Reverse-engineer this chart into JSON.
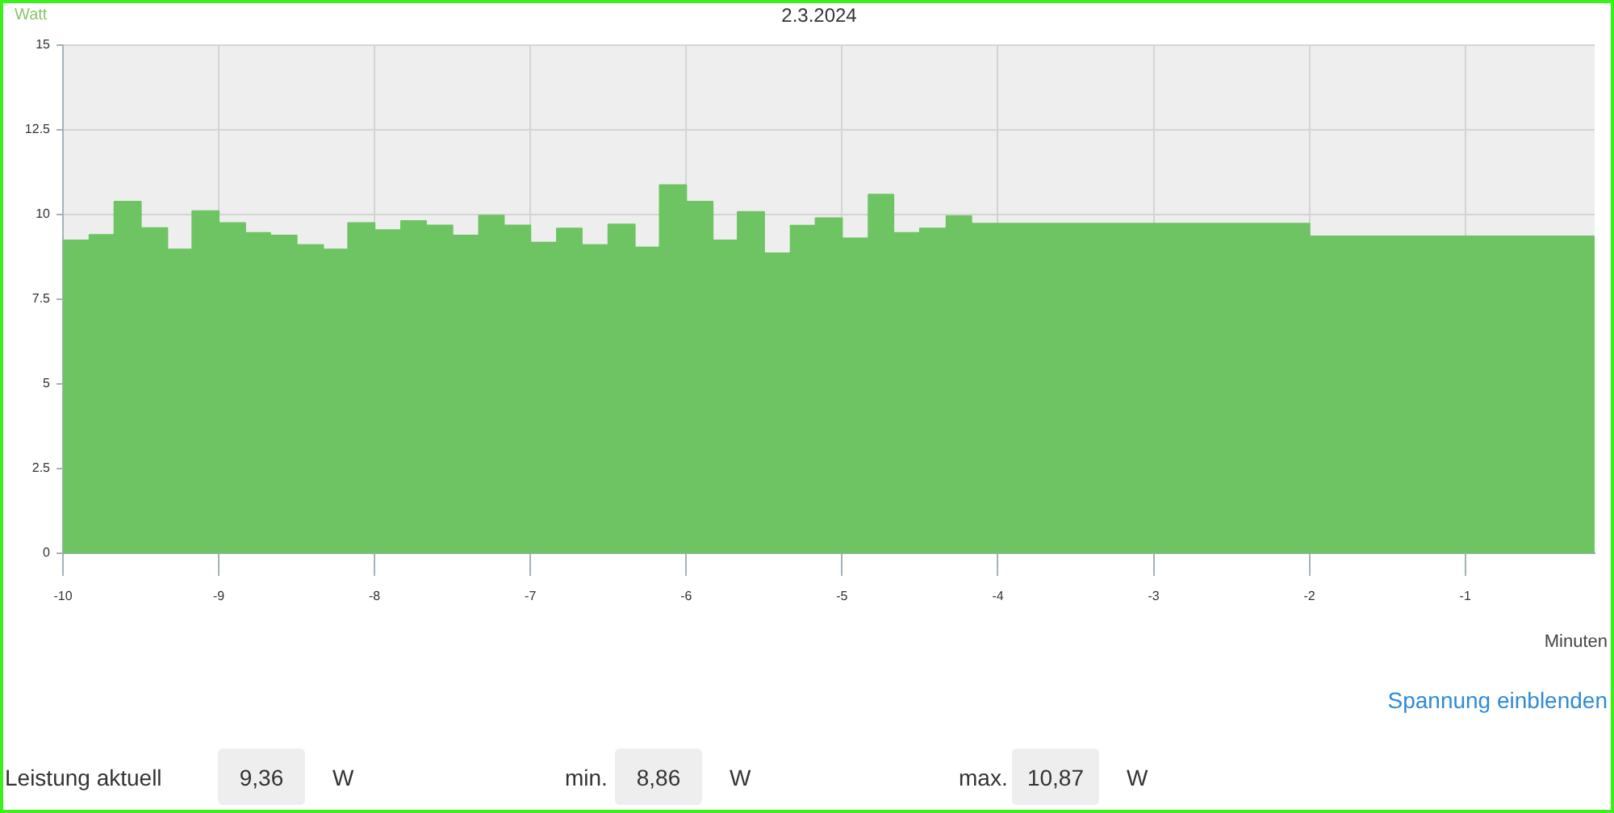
{
  "chart_data": {
    "type": "area",
    "title": "2.3.2024",
    "ylabel": "Watt",
    "xlabel": "Minuten",
    "x": [
      -10,
      -9.83,
      -9.83,
      -9.67,
      -9.67,
      -9.5,
      -9.5,
      -9.33,
      -9.33,
      -9.17,
      -9.17,
      -9,
      -9,
      -8.83,
      -8.83,
      -8.67,
      -8.67,
      -8.5,
      -8.5,
      -8.33,
      -8.33,
      -8.17,
      -8.17,
      -8,
      -8,
      -7.83,
      -7.83,
      -7.67,
      -7.67,
      -7.5,
      -7.5,
      -7.33,
      -7.33,
      -7.17,
      -7.17,
      -7,
      -7,
      -6.83,
      -6.83,
      -6.67,
      -6.67,
      -6.5,
      -6.5,
      -6.33,
      -6.33,
      -6.17,
      -6.17,
      -6,
      -6,
      -5.83,
      -5.83,
      -5.67,
      -5.67,
      -5.5,
      -5.5,
      -5.33,
      -5.33,
      -5.17,
      -5.17,
      -5,
      -5,
      -4.83,
      -4.83,
      -4.67,
      -4.67,
      -4.5,
      -4.5,
      -4.33,
      -4.33,
      -4.17,
      -4.17,
      -2,
      -2,
      -0.17
    ],
    "values": [
      9.24,
      9.24,
      9.4,
      9.4,
      10.38,
      10.38,
      9.6,
      9.6,
      8.97,
      8.97,
      10.1,
      10.1,
      9.75,
      9.75,
      9.46,
      9.46,
      9.38,
      9.38,
      9.1,
      9.1,
      8.97,
      8.97,
      9.75,
      9.75,
      9.54,
      9.54,
      9.81,
      9.81,
      9.68,
      9.68,
      9.38,
      9.38,
      9.97,
      9.97,
      9.68,
      9.68,
      9.17,
      9.17,
      9.59,
      9.59,
      9.1,
      9.1,
      9.71,
      9.71,
      9.03,
      9.03,
      10.87,
      10.87,
      10.38,
      10.38,
      9.24,
      9.24,
      10.08,
      10.08,
      8.86,
      8.86,
      9.67,
      9.67,
      9.89,
      9.89,
      9.3,
      9.3,
      10.59,
      10.59,
      9.46,
      9.46,
      9.59,
      9.59,
      9.95,
      9.95,
      9.73,
      9.73,
      9.36,
      9.36
    ],
    "color": "#6ec462",
    "xlim": [
      -10,
      -0.17
    ],
    "xticks": [
      -10,
      -9,
      -8,
      -7,
      -6,
      -5,
      -4,
      -3,
      -2,
      -1
    ],
    "ylim": [
      0,
      15
    ],
    "yticks": [
      0,
      2.5,
      5,
      7.5,
      10,
      12.5,
      15
    ],
    "grid": true,
    "legend": false,
    "marker": "none",
    "annotations": [
      "Spannung einblenden",
      "Leistung aktuell",
      "9,36",
      "W",
      "min.",
      "8,86",
      "W",
      "max.",
      "10,87",
      "W"
    ]
  }
}
